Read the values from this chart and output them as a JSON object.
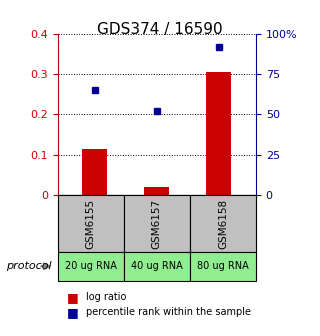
{
  "title": "GDS374 / 16590",
  "samples": [
    "GSM6155",
    "GSM6157",
    "GSM6158"
  ],
  "protocol_labels": [
    "20 ug RNA",
    "40 ug RNA",
    "80 ug RNA"
  ],
  "log_ratios": [
    0.115,
    0.02,
    0.305
  ],
  "percentile_ranks": [
    65,
    52,
    92
  ],
  "ylim_left": [
    0,
    0.4
  ],
  "ylim_right": [
    0,
    100
  ],
  "yticks_left": [
    0,
    0.1,
    0.2,
    0.3,
    0.4
  ],
  "yticks_right": [
    0,
    25,
    50,
    75,
    100
  ],
  "ytick_labels_right": [
    "0",
    "25",
    "50",
    "75",
    "100%"
  ],
  "bar_color": "#CC0000",
  "dot_color": "#000099",
  "sample_box_color": "#C0C0C0",
  "protocol_box_color": "#90EE90",
  "bar_width": 0.4,
  "legend_bar_label": "log ratio",
  "legend_dot_label": "percentile rank within the sample",
  "protocol_text": "protocol",
  "figsize": [
    3.2,
    3.36
  ],
  "dpi": 100
}
